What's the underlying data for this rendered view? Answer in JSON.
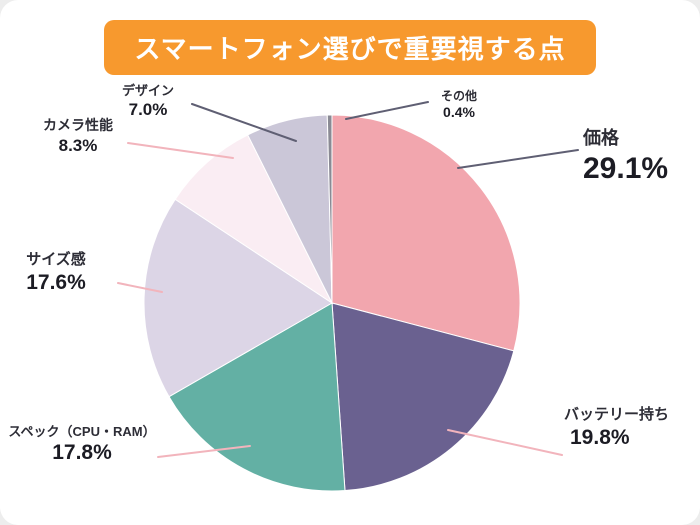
{
  "title": "スマートフォン選びで重要視する点",
  "colors": {
    "title_bg": "#F7992E",
    "leader_pink": "#F2B4BC",
    "leader_dark": "#5F5F73"
  },
  "chart_data": {
    "type": "pie",
    "title": "スマートフォン選びで重要視する点",
    "start_angle_deg": 0,
    "direction": "clockwise",
    "total": 100.0,
    "labels_layout": "outside with leader lines",
    "legend": "none",
    "slices": [
      {
        "label": "価格",
        "value": 29.1,
        "display": "29.1%",
        "color": "#F2A6AE"
      },
      {
        "label": "バッテリー持ち",
        "value": 19.8,
        "display": "19.8%",
        "color": "#6A6190"
      },
      {
        "label": "スペック（CPU・RAM）",
        "value": 17.8,
        "display": "17.8%",
        "color": "#63B0A4"
      },
      {
        "label": "サイズ感",
        "value": 17.6,
        "display": "17.6%",
        "color": "#DCD5E6"
      },
      {
        "label": "カメラ性能",
        "value": 8.3,
        "display": "8.3%",
        "color": "#FAEDF3"
      },
      {
        "label": "デザイン",
        "value": 7.0,
        "display": "7.0%",
        "color": "#CBC7D8"
      },
      {
        "label": "その他",
        "value": 0.4,
        "display": "0.4%",
        "color": "#8A8A94"
      }
    ]
  }
}
